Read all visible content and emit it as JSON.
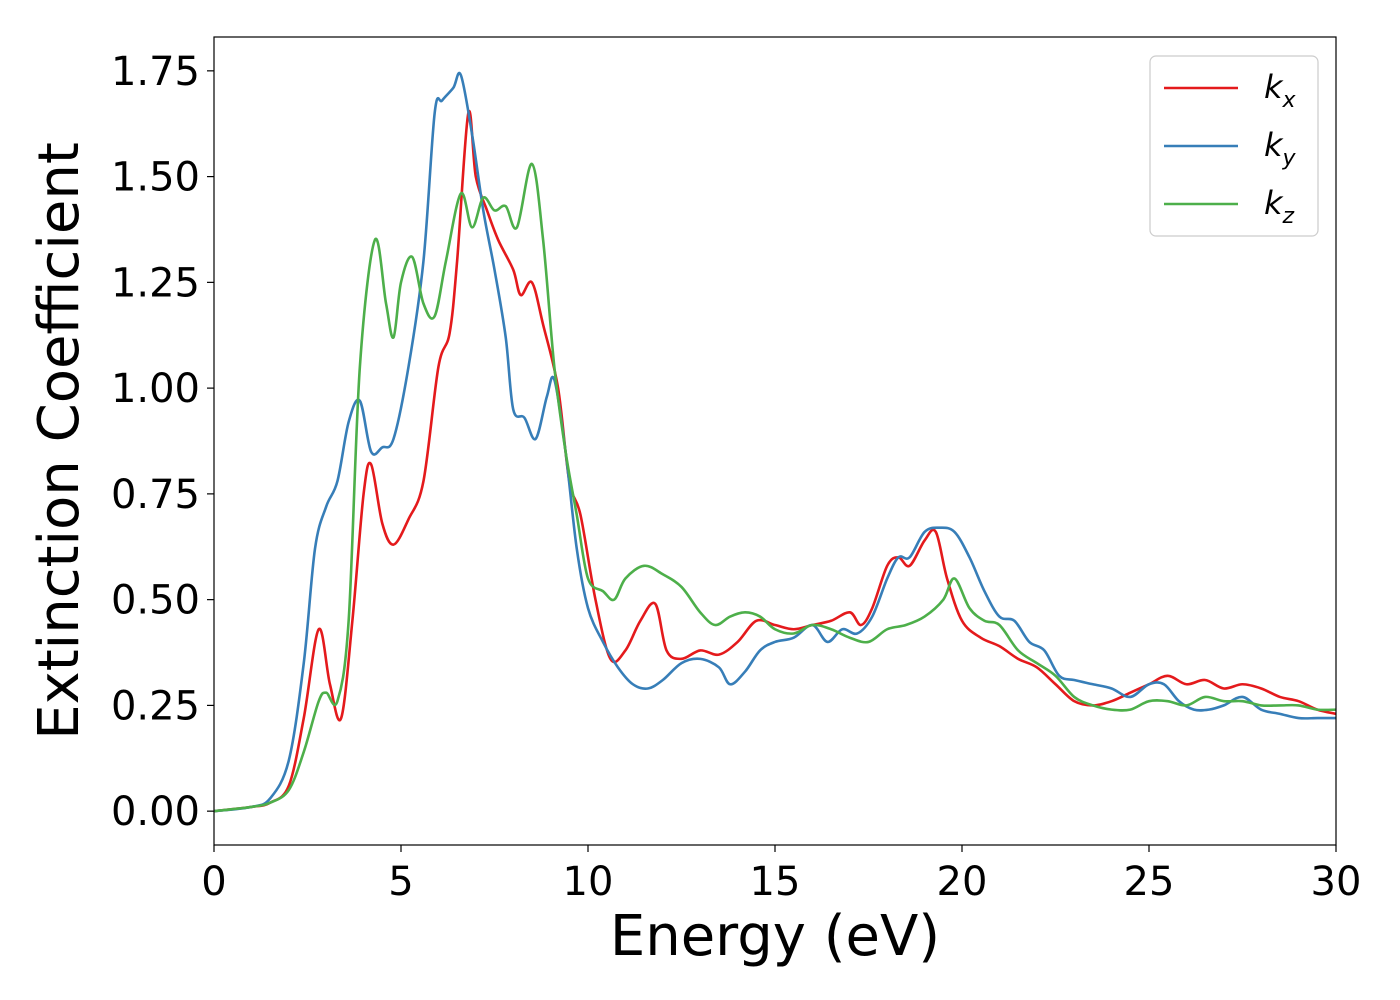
{
  "chart_data": {
    "type": "line",
    "title": "",
    "xlabel": "Energy (eV)",
    "ylabel": "Extinction Coefficient",
    "xlim": [
      0,
      30
    ],
    "ylim": [
      -0.08,
      1.83
    ],
    "xticks": [
      0,
      5,
      10,
      15,
      20,
      25,
      30
    ],
    "xtick_labels": [
      "0",
      "5",
      "10",
      "15",
      "20",
      "25",
      "30"
    ],
    "yticks": [
      0,
      0.25,
      0.5,
      0.75,
      1.0,
      1.25,
      1.5,
      1.75
    ],
    "ytick_labels": [
      "0.00",
      "0.25",
      "0.50",
      "0.75",
      "1.00",
      "1.25",
      "1.50",
      "1.75"
    ],
    "grid": false,
    "legend_position": "top-right",
    "series": [
      {
        "name": "k_x",
        "legend_main": "k",
        "legend_sub": "x",
        "color": "#e41a1c",
        "points": [
          [
            0,
            0
          ],
          [
            1,
            0.01
          ],
          [
            1.5,
            0.02
          ],
          [
            2,
            0.06
          ],
          [
            2.4,
            0.22
          ],
          [
            2.8,
            0.43
          ],
          [
            3.1,
            0.3
          ],
          [
            3.4,
            0.22
          ],
          [
            3.7,
            0.45
          ],
          [
            4.0,
            0.75
          ],
          [
            4.2,
            0.82
          ],
          [
            4.5,
            0.68
          ],
          [
            4.8,
            0.63
          ],
          [
            5.2,
            0.69
          ],
          [
            5.6,
            0.78
          ],
          [
            6.0,
            1.05
          ],
          [
            6.3,
            1.13
          ],
          [
            6.5,
            1.3
          ],
          [
            6.8,
            1.65
          ],
          [
            7.0,
            1.5
          ],
          [
            7.3,
            1.42
          ],
          [
            7.6,
            1.35
          ],
          [
            8.0,
            1.28
          ],
          [
            8.2,
            1.22
          ],
          [
            8.5,
            1.25
          ],
          [
            8.8,
            1.15
          ],
          [
            9.2,
            1.0
          ],
          [
            9.5,
            0.78
          ],
          [
            9.8,
            0.7
          ],
          [
            10.2,
            0.5
          ],
          [
            10.6,
            0.36
          ],
          [
            11.0,
            0.38
          ],
          [
            11.4,
            0.45
          ],
          [
            11.8,
            0.49
          ],
          [
            12.1,
            0.38
          ],
          [
            12.5,
            0.36
          ],
          [
            13.0,
            0.38
          ],
          [
            13.5,
            0.37
          ],
          [
            14.0,
            0.4
          ],
          [
            14.5,
            0.45
          ],
          [
            15.0,
            0.44
          ],
          [
            15.5,
            0.43
          ],
          [
            16.0,
            0.44
          ],
          [
            16.5,
            0.45
          ],
          [
            17.0,
            0.47
          ],
          [
            17.3,
            0.44
          ],
          [
            17.6,
            0.48
          ],
          [
            18.0,
            0.58
          ],
          [
            18.3,
            0.6
          ],
          [
            18.6,
            0.58
          ],
          [
            19.0,
            0.64
          ],
          [
            19.3,
            0.66
          ],
          [
            19.6,
            0.55
          ],
          [
            20.0,
            0.45
          ],
          [
            20.5,
            0.41
          ],
          [
            21.0,
            0.39
          ],
          [
            21.5,
            0.36
          ],
          [
            22.0,
            0.34
          ],
          [
            22.5,
            0.3
          ],
          [
            23.0,
            0.26
          ],
          [
            23.5,
            0.25
          ],
          [
            24.0,
            0.26
          ],
          [
            24.5,
            0.28
          ],
          [
            25.0,
            0.3
          ],
          [
            25.5,
            0.32
          ],
          [
            26.0,
            0.3
          ],
          [
            26.5,
            0.31
          ],
          [
            27.0,
            0.29
          ],
          [
            27.5,
            0.3
          ],
          [
            28.0,
            0.29
          ],
          [
            28.5,
            0.27
          ],
          [
            29.0,
            0.26
          ],
          [
            29.5,
            0.24
          ],
          [
            30.0,
            0.23
          ]
        ]
      },
      {
        "name": "k_y",
        "legend_main": "k",
        "legend_sub": "y",
        "color": "#377eb8",
        "points": [
          [
            0,
            0
          ],
          [
            1,
            0.01
          ],
          [
            1.5,
            0.03
          ],
          [
            2,
            0.12
          ],
          [
            2.4,
            0.35
          ],
          [
            2.7,
            0.62
          ],
          [
            3.0,
            0.72
          ],
          [
            3.3,
            0.78
          ],
          [
            3.6,
            0.92
          ],
          [
            3.9,
            0.97
          ],
          [
            4.2,
            0.85
          ],
          [
            4.5,
            0.86
          ],
          [
            4.8,
            0.88
          ],
          [
            5.2,
            1.05
          ],
          [
            5.6,
            1.3
          ],
          [
            5.9,
            1.65
          ],
          [
            6.1,
            1.68
          ],
          [
            6.4,
            1.71
          ],
          [
            6.6,
            1.74
          ],
          [
            6.9,
            1.6
          ],
          [
            7.2,
            1.42
          ],
          [
            7.5,
            1.28
          ],
          [
            7.8,
            1.12
          ],
          [
            8.0,
            0.95
          ],
          [
            8.3,
            0.93
          ],
          [
            8.6,
            0.88
          ],
          [
            8.9,
            0.98
          ],
          [
            9.1,
            1.02
          ],
          [
            9.4,
            0.85
          ],
          [
            9.7,
            0.62
          ],
          [
            10.0,
            0.48
          ],
          [
            10.4,
            0.4
          ],
          [
            10.8,
            0.34
          ],
          [
            11.2,
            0.3
          ],
          [
            11.6,
            0.29
          ],
          [
            12.0,
            0.31
          ],
          [
            12.5,
            0.35
          ],
          [
            13.0,
            0.36
          ],
          [
            13.5,
            0.34
          ],
          [
            13.8,
            0.3
          ],
          [
            14.2,
            0.33
          ],
          [
            14.6,
            0.38
          ],
          [
            15.0,
            0.4
          ],
          [
            15.5,
            0.41
          ],
          [
            16.0,
            0.44
          ],
          [
            16.4,
            0.4
          ],
          [
            16.8,
            0.43
          ],
          [
            17.2,
            0.42
          ],
          [
            17.6,
            0.46
          ],
          [
            18.0,
            0.55
          ],
          [
            18.3,
            0.6
          ],
          [
            18.6,
            0.6
          ],
          [
            19.0,
            0.66
          ],
          [
            19.4,
            0.67
          ],
          [
            19.8,
            0.66
          ],
          [
            20.2,
            0.6
          ],
          [
            20.6,
            0.52
          ],
          [
            21.0,
            0.46
          ],
          [
            21.4,
            0.45
          ],
          [
            21.8,
            0.4
          ],
          [
            22.2,
            0.38
          ],
          [
            22.6,
            0.32
          ],
          [
            23.0,
            0.31
          ],
          [
            23.5,
            0.3
          ],
          [
            24.0,
            0.29
          ],
          [
            24.5,
            0.27
          ],
          [
            25.0,
            0.3
          ],
          [
            25.4,
            0.3
          ],
          [
            25.8,
            0.26
          ],
          [
            26.2,
            0.24
          ],
          [
            26.6,
            0.24
          ],
          [
            27.0,
            0.25
          ],
          [
            27.5,
            0.27
          ],
          [
            28.0,
            0.24
          ],
          [
            28.5,
            0.23
          ],
          [
            29.0,
            0.22
          ],
          [
            29.5,
            0.22
          ],
          [
            30.0,
            0.22
          ]
        ]
      },
      {
        "name": "k_z",
        "legend_main": "k",
        "legend_sub": "z",
        "color": "#4daf4a",
        "points": [
          [
            0,
            0
          ],
          [
            1,
            0.01
          ],
          [
            1.5,
            0.02
          ],
          [
            2,
            0.05
          ],
          [
            2.4,
            0.14
          ],
          [
            2.8,
            0.26
          ],
          [
            3.0,
            0.28
          ],
          [
            3.3,
            0.26
          ],
          [
            3.6,
            0.45
          ],
          [
            3.9,
            1.05
          ],
          [
            4.3,
            1.35
          ],
          [
            4.6,
            1.2
          ],
          [
            4.8,
            1.12
          ],
          [
            5.0,
            1.25
          ],
          [
            5.3,
            1.31
          ],
          [
            5.6,
            1.2
          ],
          [
            5.9,
            1.17
          ],
          [
            6.2,
            1.3
          ],
          [
            6.6,
            1.46
          ],
          [
            6.9,
            1.38
          ],
          [
            7.2,
            1.45
          ],
          [
            7.5,
            1.42
          ],
          [
            7.8,
            1.43
          ],
          [
            8.1,
            1.38
          ],
          [
            8.5,
            1.53
          ],
          [
            8.8,
            1.35
          ],
          [
            9.1,
            1.05
          ],
          [
            9.4,
            0.85
          ],
          [
            9.7,
            0.7
          ],
          [
            10.0,
            0.55
          ],
          [
            10.4,
            0.52
          ],
          [
            10.7,
            0.5
          ],
          [
            11.0,
            0.55
          ],
          [
            11.5,
            0.58
          ],
          [
            12.0,
            0.56
          ],
          [
            12.5,
            0.53
          ],
          [
            13.0,
            0.47
          ],
          [
            13.4,
            0.44
          ],
          [
            13.8,
            0.46
          ],
          [
            14.2,
            0.47
          ],
          [
            14.6,
            0.46
          ],
          [
            15.0,
            0.43
          ],
          [
            15.5,
            0.42
          ],
          [
            16.0,
            0.44
          ],
          [
            16.5,
            0.43
          ],
          [
            17.0,
            0.41
          ],
          [
            17.5,
            0.4
          ],
          [
            18.0,
            0.43
          ],
          [
            18.5,
            0.44
          ],
          [
            19.0,
            0.46
          ],
          [
            19.5,
            0.5
          ],
          [
            19.8,
            0.55
          ],
          [
            20.2,
            0.48
          ],
          [
            20.6,
            0.45
          ],
          [
            21.0,
            0.44
          ],
          [
            21.5,
            0.38
          ],
          [
            22.0,
            0.35
          ],
          [
            22.5,
            0.32
          ],
          [
            23.0,
            0.27
          ],
          [
            23.5,
            0.25
          ],
          [
            24.0,
            0.24
          ],
          [
            24.5,
            0.24
          ],
          [
            25.0,
            0.26
          ],
          [
            25.5,
            0.26
          ],
          [
            26.0,
            0.25
          ],
          [
            26.5,
            0.27
          ],
          [
            27.0,
            0.26
          ],
          [
            27.5,
            0.26
          ],
          [
            28.0,
            0.25
          ],
          [
            28.5,
            0.25
          ],
          [
            29.0,
            0.25
          ],
          [
            29.5,
            0.24
          ],
          [
            30.0,
            0.24
          ]
        ]
      }
    ]
  }
}
